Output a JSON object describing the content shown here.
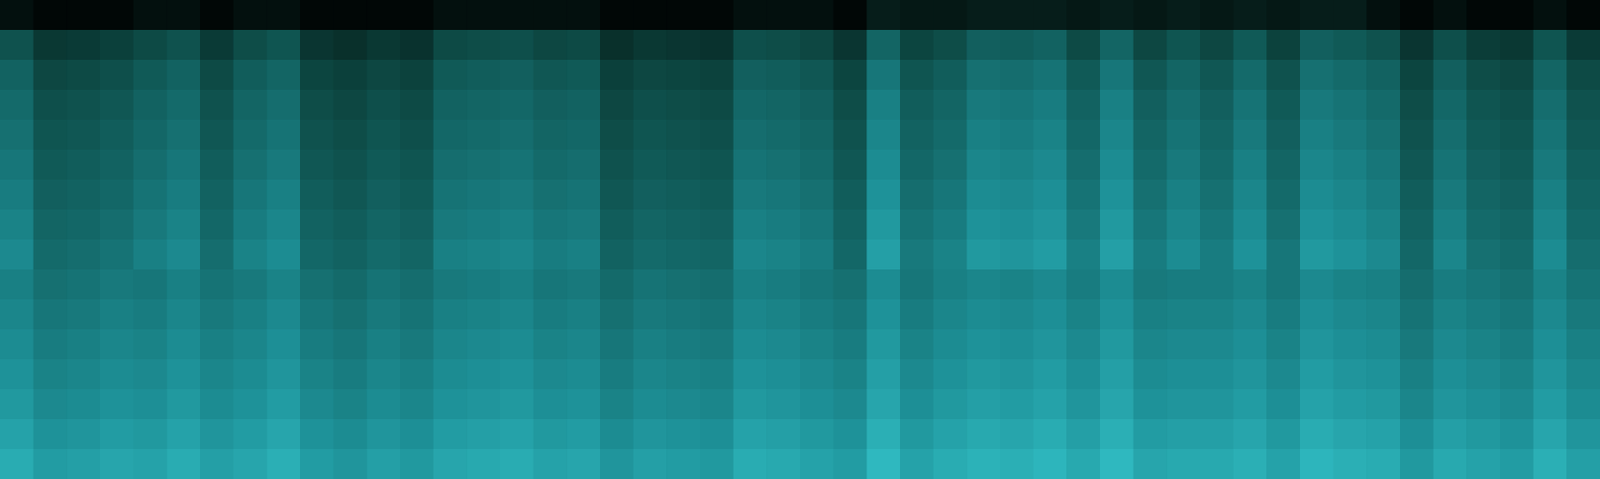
{
  "chart_data": {
    "type": "heatmap",
    "tick_labels": false,
    "xlim": [
      0,
      48
    ],
    "ylim": [
      0,
      16
    ],
    "zlim": [
      -100,
      -20
    ],
    "z": [
      [
        -88,
        -95,
        -95,
        -95,
        -88,
        -88,
        -95,
        -88,
        -88,
        -95,
        -95,
        -95,
        -95,
        -88,
        -88,
        -88,
        -88,
        -88,
        -95,
        -95,
        -95,
        -95,
        -88,
        -88,
        -88,
        -95,
        -78,
        -82,
        -82,
        -78,
        -78,
        -78,
        -82,
        -78,
        -82,
        -78,
        -82,
        -78,
        -82,
        -78,
        -78,
        -88,
        -95,
        -88,
        -95,
        -95,
        -88,
        -95
      ],
      [
        -57,
        -67,
        -66,
        -64,
        -60,
        -57,
        -66,
        -59,
        -56,
        -68,
        -70,
        -67,
        -69,
        -60,
        -59,
        -58,
        -61,
        -60,
        -70,
        -67,
        -68,
        -69,
        -58,
        -59,
        -61,
        -68,
        -50,
        -62,
        -59,
        -52,
        -53,
        -51,
        -60,
        -50,
        -61,
        -56,
        -61,
        -54,
        -63,
        -52,
        -54,
        -57,
        -68,
        -58,
        -65,
        -67,
        -56,
        -66
      ],
      [
        -51,
        -61,
        -60,
        -58,
        -54,
        -51,
        -60,
        -53,
        -50,
        -62,
        -64,
        -61,
        -63,
        -54,
        -53,
        -52,
        -55,
        -54,
        -64,
        -61,
        -62,
        -63,
        -52,
        -53,
        -55,
        -62,
        -44,
        -56,
        -53,
        -46,
        -47,
        -45,
        -54,
        -44,
        -55,
        -50,
        -55,
        -48,
        -57,
        -46,
        -48,
        -51,
        -62,
        -52,
        -59,
        -61,
        -50,
        -60
      ],
      [
        -48,
        -58,
        -57,
        -55,
        -51,
        -48,
        -57,
        -50,
        -47,
        -59,
        -61,
        -58,
        -60,
        -51,
        -50,
        -49,
        -52,
        -51,
        -61,
        -58,
        -59,
        -60,
        -49,
        -50,
        -52,
        -59,
        -41,
        -53,
        -50,
        -43,
        -44,
        -42,
        -51,
        -41,
        -52,
        -47,
        -52,
        -45,
        -54,
        -43,
        -45,
        -48,
        -59,
        -49,
        -56,
        -58,
        -47,
        -57
      ],
      [
        -46,
        -56,
        -55,
        -53,
        -49,
        -46,
        -55,
        -48,
        -45,
        -57,
        -59,
        -56,
        -58,
        -49,
        -48,
        -47,
        -50,
        -49,
        -59,
        -56,
        -57,
        -58,
        -47,
        -48,
        -50,
        -57,
        -39,
        -51,
        -48,
        -41,
        -42,
        -40,
        -49,
        -39,
        -50,
        -45,
        -50,
        -43,
        -52,
        -41,
        -43,
        -46,
        -57,
        -47,
        -54,
        -56,
        -45,
        -55
      ],
      [
        -44,
        -54,
        -53,
        -51,
        -47,
        -44,
        -53,
        -46,
        -43,
        -55,
        -57,
        -54,
        -56,
        -47,
        -46,
        -45,
        -48,
        -47,
        -57,
        -54,
        -55,
        -56,
        -45,
        -46,
        -48,
        -55,
        -37,
        -49,
        -46,
        -39,
        -40,
        -38,
        -47,
        -37,
        -48,
        -43,
        -48,
        -41,
        -50,
        -39,
        -41,
        -44,
        -55,
        -45,
        -52,
        -54,
        -43,
        -53
      ],
      [
        -42,
        -52,
        -51,
        -49,
        -45,
        -42,
        -51,
        -44,
        -41,
        -53,
        -55,
        -52,
        -54,
        -45,
        -44,
        -43,
        -46,
        -45,
        -55,
        -52,
        -53,
        -54,
        -43,
        -44,
        -46,
        -53,
        -35,
        -47,
        -44,
        -37,
        -38,
        -36,
        -45,
        -35,
        -46,
        -41,
        -46,
        -39,
        -48,
        -37,
        -39,
        -42,
        -53,
        -43,
        -50,
        -52,
        -41,
        -51
      ],
      [
        -40,
        -50,
        -49,
        -47,
        -43,
        -40,
        -49,
        -42,
        -39,
        -51,
        -53,
        -50,
        -52,
        -43,
        -42,
        -41,
        -44,
        -43,
        -53,
        -50,
        -51,
        -52,
        -41,
        -42,
        -44,
        -51,
        -33,
        -45,
        -42,
        -35,
        -36,
        -34,
        -43,
        -33,
        -44,
        -39,
        -44,
        -37,
        -46,
        -35,
        -37,
        -40,
        -51,
        -41,
        -48,
        -50,
        -39,
        -49
      ],
      [
        -38,
        -48,
        -47,
        -45,
        -41,
        -38,
        -47,
        -40,
        -37,
        -49,
        -51,
        -48,
        -50,
        -41,
        -40,
        -39,
        -42,
        -41,
        -51,
        -48,
        -49,
        -50,
        -39,
        -40,
        -42,
        -49,
        -31,
        -43,
        -40,
        -33,
        -34,
        -32,
        -41,
        -31,
        -42,
        -37,
        -42,
        -35,
        -44,
        -33,
        -35,
        -38,
        -49,
        -39,
        -46,
        -48,
        -37,
        -47
      ],
      [
        -41,
        -46,
        -45,
        -43,
        -44,
        -41,
        -45,
        -43,
        -40,
        -46,
        -48,
        -45,
        -47,
        -43,
        -42,
        -41,
        -44,
        -43,
        -48,
        -45,
        -46,
        -47,
        -41,
        -42,
        -44,
        -46,
        -37,
        -44,
        -41,
        -39,
        -40,
        -38,
        -42,
        -37,
        -43,
        -42,
        -42,
        -40,
        -44,
        -38,
        -40,
        -41,
        -47,
        -42,
        -44,
        -46,
        -40,
        -45
      ],
      [
        -39,
        -44,
        -43,
        -41,
        -42,
        -39,
        -43,
        -41,
        -38,
        -44,
        -46,
        -43,
        -45,
        -41,
        -40,
        -39,
        -42,
        -41,
        -46,
        -43,
        -44,
        -45,
        -39,
        -40,
        -42,
        -44,
        -35,
        -42,
        -39,
        -37,
        -38,
        -36,
        -40,
        -35,
        -41,
        -40,
        -40,
        -38,
        -42,
        -36,
        -38,
        -39,
        -45,
        -40,
        -42,
        -44,
        -38,
        -43
      ],
      [
        -37,
        -42,
        -41,
        -39,
        -40,
        -37,
        -41,
        -39,
        -36,
        -42,
        -44,
        -41,
        -43,
        -39,
        -38,
        -37,
        -40,
        -39,
        -44,
        -41,
        -42,
        -43,
        -37,
        -38,
        -40,
        -42,
        -33,
        -40,
        -37,
        -35,
        -36,
        -34,
        -38,
        -33,
        -39,
        -38,
        -38,
        -36,
        -40,
        -34,
        -36,
        -37,
        -43,
        -38,
        -40,
        -42,
        -36,
        -41
      ],
      [
        -35,
        -40,
        -39,
        -37,
        -38,
        -35,
        -39,
        -37,
        -34,
        -40,
        -42,
        -39,
        -41,
        -37,
        -36,
        -35,
        -38,
        -37,
        -42,
        -39,
        -40,
        -41,
        -35,
        -36,
        -38,
        -40,
        -31,
        -38,
        -35,
        -33,
        -34,
        -32,
        -36,
        -31,
        -37,
        -36,
        -36,
        -34,
        -38,
        -32,
        -34,
        -35,
        -41,
        -36,
        -38,
        -40,
        -34,
        -39
      ],
      [
        -33,
        -38,
        -37,
        -35,
        -36,
        -33,
        -37,
        -35,
        -32,
        -38,
        -40,
        -37,
        -39,
        -35,
        -34,
        -33,
        -36,
        -35,
        -40,
        -37,
        -38,
        -39,
        -33,
        -34,
        -36,
        -38,
        -29,
        -36,
        -33,
        -31,
        -32,
        -30,
        -34,
        -29,
        -35,
        -34,
        -34,
        -32,
        -36,
        -30,
        -32,
        -33,
        -39,
        -34,
        -36,
        -38,
        -32,
        -37
      ],
      [
        -30,
        -35,
        -34,
        -32,
        -33,
        -30,
        -34,
        -32,
        -29,
        -35,
        -37,
        -34,
        -36,
        -32,
        -31,
        -30,
        -33,
        -32,
        -37,
        -34,
        -35,
        -36,
        -30,
        -31,
        -33,
        -35,
        -26,
        -33,
        -30,
        -28,
        -29,
        -27,
        -31,
        -26,
        -32,
        -31,
        -31,
        -29,
        -33,
        -27,
        -29,
        -30,
        -36,
        -31,
        -33,
        -35,
        -29,
        -34
      ],
      [
        -27,
        -32,
        -31,
        -29,
        -30,
        -27,
        -31,
        -29,
        -26,
        -32,
        -34,
        -31,
        -33,
        -29,
        -28,
        -27,
        -30,
        -29,
        -34,
        -31,
        -32,
        -33,
        -27,
        -28,
        -30,
        -32,
        -23,
        -30,
        -27,
        -25,
        -26,
        -24,
        -28,
        -23,
        -29,
        -28,
        -28,
        -26,
        -30,
        -24,
        -26,
        -27,
        -33,
        -28,
        -30,
        -32,
        -26,
        -31
      ]
    ]
  }
}
